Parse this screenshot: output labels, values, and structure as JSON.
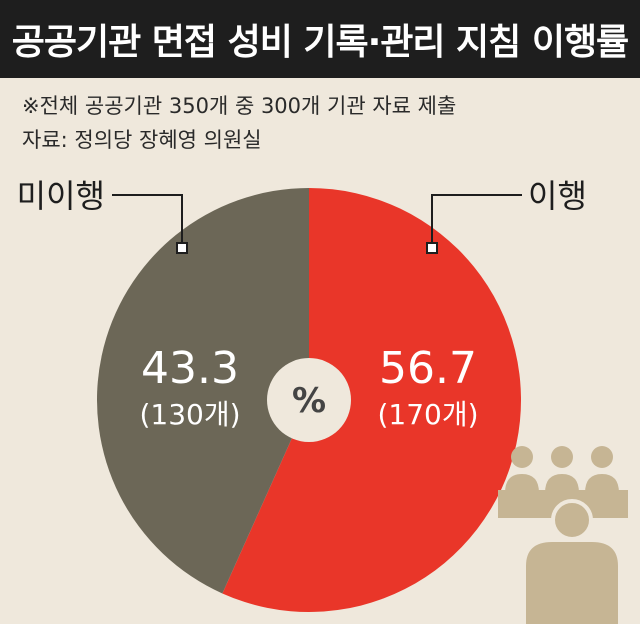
{
  "title": "공공기관 면접 성비 기록·관리 지침 이행률",
  "notes": {
    "scope": "※전체 공공기관 350개 중 300개 기관 자료 제출",
    "source": "자료: 정의당 장혜영 의원실"
  },
  "colors": {
    "background": "#efe8dc",
    "title_bg": "#1e1e1e",
    "implemented": "#e93629",
    "not_implemented": "#6c6757",
    "center": "#efe8dc",
    "people_icon": "#c6b594"
  },
  "chart_data": {
    "type": "pie",
    "title": "공공기관 면접 성비 기록·관리 지침 이행률",
    "unit": "%",
    "slices": [
      {
        "label": "이행",
        "value": 56.7,
        "count_label": "(170개)"
      },
      {
        "label": "미이행",
        "value": 43.3,
        "count_label": "(130개)"
      }
    ]
  },
  "icons": [
    "meeting-people-icon"
  ]
}
